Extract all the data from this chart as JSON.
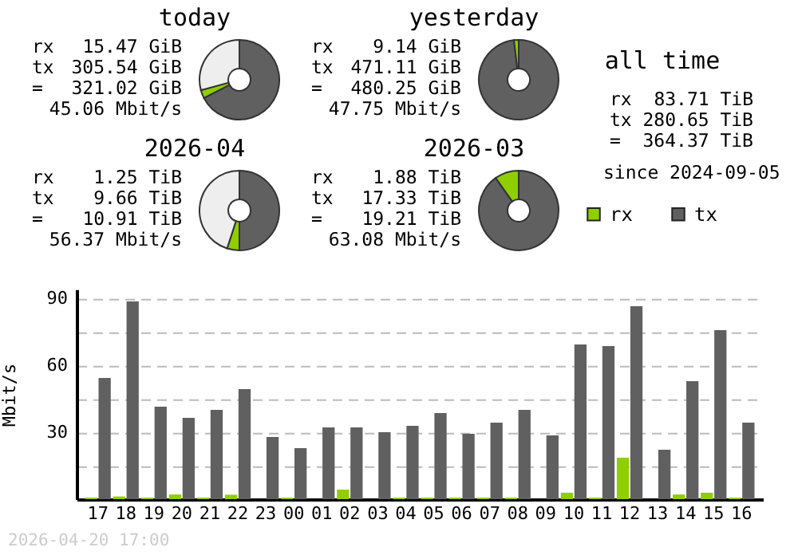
{
  "chart_data": [
    {
      "type": "donut",
      "title": "today",
      "categories": [
        null,
        null,
        null
      ],
      "values": [
        67.4,
        3.4,
        29.2
      ],
      "colors": [
        "#606060",
        "#8fce00",
        "#eeeeee"
      ],
      "legend": false,
      "annotations": [
        "rx 15.47 GiB",
        "tx 305.54 GiB",
        "= 321.02 GiB",
        "45.06 Mbit/s"
      ]
    },
    {
      "type": "donut",
      "title": "yesterday",
      "categories": [
        null,
        null,
        null
      ],
      "values": [
        98.1,
        1.9,
        0
      ],
      "colors": [
        "#606060",
        "#8fce00",
        "#eeeeee"
      ],
      "legend": false,
      "annotations": [
        "rx 9.14 GiB",
        "tx 471.11 GiB",
        "= 480.25 GiB",
        "47.75 Mbit/s"
      ]
    },
    {
      "type": "other",
      "title": "all time",
      "annotations": [
        "rx 83.71 TiB",
        "tx 280.65 TiB",
        "= 364.37 TiB",
        "since 2024-09-05"
      ]
    },
    {
      "type": "donut",
      "title": "2026-04",
      "categories": [
        null,
        null,
        null
      ],
      "values": [
        50,
        5,
        45
      ],
      "colors": [
        "#606060",
        "#8fce00",
        "#eeeeee"
      ],
      "legend": false,
      "annotations": [
        "rx 1.25 TiB",
        "tx 9.66 TiB",
        "= 10.91 TiB",
        "56.37 Mbit/s"
      ]
    },
    {
      "type": "donut",
      "title": "2026-03",
      "categories": [
        null,
        null,
        null
      ],
      "values": [
        90.2,
        9.8,
        0
      ],
      "colors": [
        "#606060",
        "#8fce00",
        "#eeeeee"
      ],
      "legend": false,
      "annotations": [
        "rx 1.88 TiB",
        "tx 17.33 TiB",
        "= 19.21 TiB",
        "63.08 Mbit/s"
      ]
    },
    {
      "type": "bar",
      "ylabel": "Mbit/s",
      "legend": "top right",
      "grid": "y",
      "categories": [
        "17",
        "18",
        "19",
        "20",
        "21",
        "22",
        "23",
        "00",
        "01",
        "02",
        "03",
        "04",
        "05",
        "06",
        "07",
        "08",
        "09",
        "10",
        "11",
        "12",
        "13",
        "14",
        "15",
        "16"
      ],
      "ylim": [
        0,
        94
      ],
      "yticks": [
        {
          "value": 15,
          "label": null
        },
        30,
        {
          "value": 45,
          "label": null
        },
        60,
        {
          "value": 75,
          "label": null
        },
        90
      ],
      "series": [
        {
          "name": "rx",
          "color": "#8fce00",
          "values": [
            0.7,
            1.2,
            0.7,
            2.1,
            0.7,
            2.0,
            0,
            0.7,
            0,
            4.3,
            0,
            0.7,
            0.7,
            0.7,
            0.7,
            0.7,
            0,
            2.9,
            0.7,
            18.6,
            0,
            2.1,
            2.9,
            0.7
          ]
        },
        {
          "name": "tx",
          "color": "#606060",
          "values": [
            54.3,
            88.6,
            41.4,
            36.4,
            40.0,
            49.3,
            27.9,
            22.9,
            32.1,
            32.1,
            30.0,
            32.9,
            38.6,
            29.3,
            34.3,
            40.0,
            28.6,
            69.3,
            68.6,
            86.4,
            22.1,
            52.9,
            75.7,
            34.3
          ]
        }
      ],
      "annotations": [
        "2026-04-20 17:00"
      ]
    }
  ]
}
